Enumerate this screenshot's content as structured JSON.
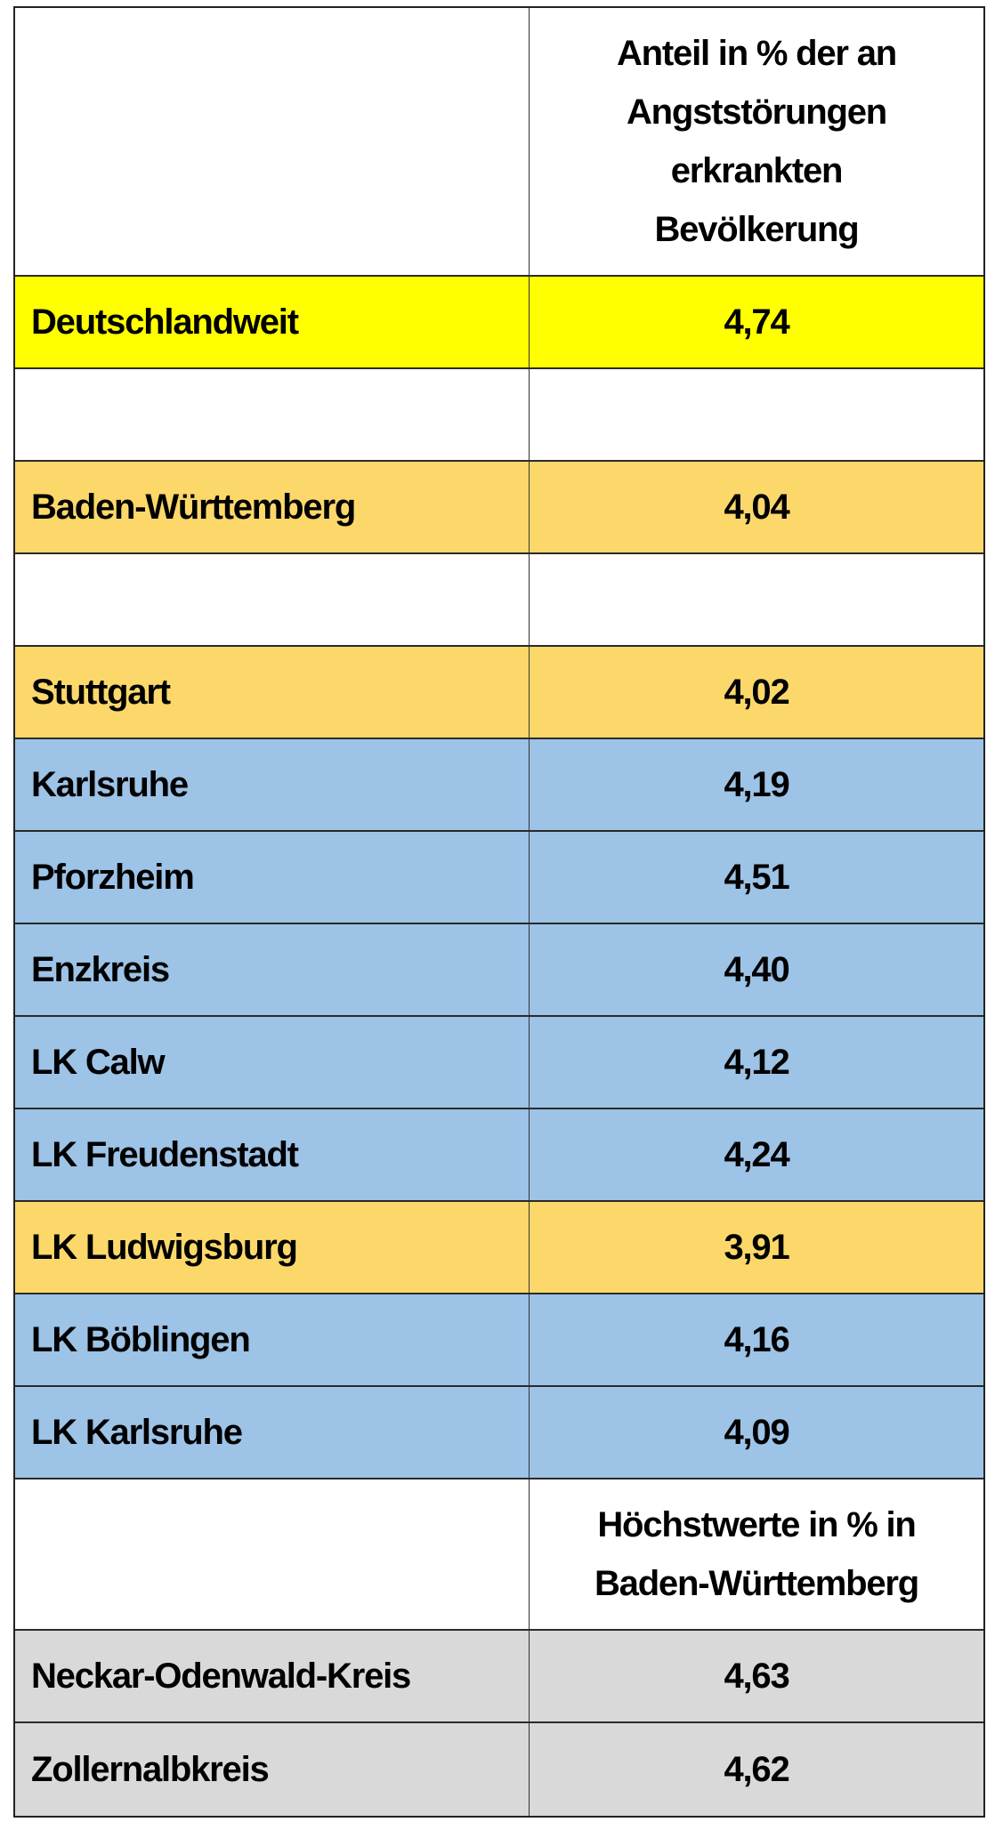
{
  "table": {
    "header": {
      "label_col": "",
      "value_col_lines": [
        "Anteil in % der an",
        "Angststörungen",
        "erkrankten",
        "Bevölkerung"
      ]
    },
    "rows": [
      {
        "label": "Deutschlandweit",
        "value": "4,74",
        "color": "#FFFF00"
      },
      {
        "label": "",
        "value": "",
        "color": "#FFFFFF"
      },
      {
        "label": "Baden-Württemberg",
        "value": "4,04",
        "color": "#FCD86A"
      },
      {
        "label": "",
        "value": "",
        "color": "#FFFFFF"
      },
      {
        "label": "Stuttgart",
        "value": "4,02",
        "color": "#FCD86A"
      },
      {
        "label": "Karlsruhe",
        "value": "4,19",
        "color": "#9DC3E6"
      },
      {
        "label": "Pforzheim",
        "value": "4,51",
        "color": "#9DC3E6"
      },
      {
        "label": "Enzkreis",
        "value": "4,40",
        "color": "#9DC3E6"
      },
      {
        "label": "LK Calw",
        "value": "4,12",
        "color": "#9DC3E6"
      },
      {
        "label": "LK Freudenstadt",
        "value": "4,24",
        "color": "#9DC3E6"
      },
      {
        "label": "LK Ludwigsburg",
        "value": "3,91",
        "color": "#FCD86A"
      },
      {
        "label": "LK Böblingen",
        "value": "4,16",
        "color": "#9DC3E6"
      },
      {
        "label": "LK Karlsruhe",
        "value": "4,09",
        "color": "#9DC3E6"
      }
    ],
    "subheader": {
      "label_col": "",
      "value_col_lines": [
        "Höchstwerte in % in",
        "Baden-Württemberg"
      ]
    },
    "max_rows": [
      {
        "label": "Neckar-Odenwald-Kreis",
        "value": "4,63",
        "color": "#D9D9D9"
      },
      {
        "label": "Zollernalbkreis",
        "value": "4,62",
        "color": "#D9D9D9"
      }
    ]
  },
  "colors": {
    "national": "#FFFF00",
    "below_national_highlight": "#FCD86A",
    "district": "#9DC3E6",
    "max_values": "#D9D9D9",
    "border": "#222222"
  }
}
